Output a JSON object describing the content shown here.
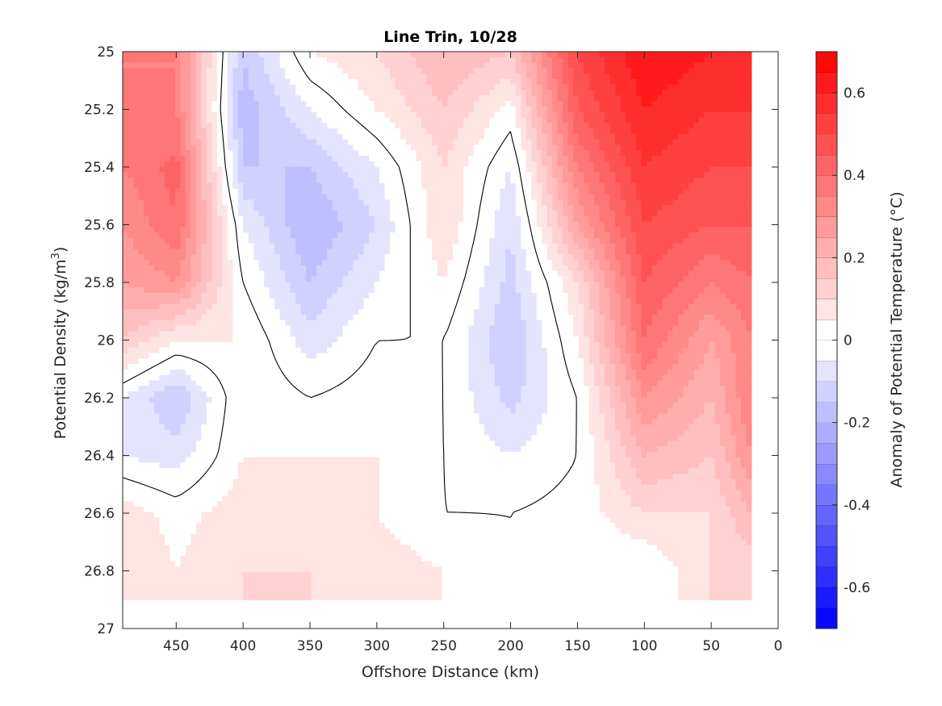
{
  "chart_data": {
    "type": "contourf",
    "title": "Line Trin, 10/28",
    "xlabel": "Offshore Distance (km)",
    "ylabel": "Potential Density (kg/m3)",
    "ylabel_parts": {
      "main": "Potential Density (kg/m",
      "sup": "3",
      "tail": ")"
    },
    "xlim": [
      490,
      0
    ],
    "x_reversed": true,
    "ylim": [
      25,
      27
    ],
    "y_reversed": true,
    "x_ticks": [
      450,
      400,
      350,
      300,
      250,
      200,
      150,
      100,
      50,
      0
    ],
    "x_tick_labels": [
      "450",
      "400",
      "350",
      "300",
      "250",
      "200",
      "150",
      "100",
      "50",
      "0"
    ],
    "y_ticks": [
      25,
      25.2,
      25.4,
      25.6,
      25.8,
      26,
      26.2,
      26.4,
      26.6,
      26.8,
      27
    ],
    "y_tick_labels": [
      "25",
      "25.2",
      "25.4",
      "25.6",
      "25.8",
      "26",
      "26.2",
      "26.4",
      "26.6",
      "26.8",
      "27"
    ],
    "x_coords": [
      490,
      450,
      400,
      350,
      300,
      250,
      200,
      150,
      100,
      50,
      20
    ],
    "y_coords": [
      25.0,
      25.2,
      25.4,
      25.6,
      25.8,
      26.0,
      26.2,
      26.4,
      26.6,
      26.8,
      26.9
    ],
    "values": [
      [
        0.35,
        0.35,
        -0.15,
        0.05,
        0.1,
        0.2,
        0.15,
        0.5,
        0.65,
        0.6,
        0.6
      ],
      [
        0.35,
        0.35,
        -0.18,
        -0.05,
        0.05,
        0.15,
        0.03,
        0.45,
        0.6,
        0.55,
        0.55
      ],
      [
        0.35,
        0.42,
        -0.15,
        -0.15,
        -0.05,
        0.1,
        -0.05,
        0.35,
        0.55,
        0.5,
        0.5
      ],
      [
        0.3,
        0.4,
        -0.05,
        -0.2,
        -0.1,
        0.1,
        -0.1,
        0.25,
        0.5,
        0.45,
        0.45
      ],
      [
        0.25,
        0.3,
        0.0,
        -0.15,
        -0.05,
        0.05,
        -0.12,
        0.1,
        0.45,
        0.35,
        0.4
      ],
      [
        0.15,
        0.05,
        0.05,
        -0.08,
        0.0,
        0.0,
        -0.15,
        0.05,
        0.4,
        0.25,
        0.35
      ],
      [
        -0.05,
        -0.15,
        0.05,
        0.0,
        0.03,
        0.0,
        -0.12,
        0.0,
        0.3,
        0.2,
        0.35
      ],
      [
        -0.05,
        -0.08,
        0.05,
        0.05,
        0.05,
        0.0,
        -0.05,
        0.0,
        0.2,
        0.15,
        0.3
      ],
      [
        0.08,
        0.03,
        0.08,
        0.08,
        0.05,
        0.0,
        0.0,
        0.02,
        0.1,
        0.1,
        0.2
      ],
      [
        0.1,
        0.05,
        0.1,
        0.1,
        0.08,
        0.05,
        0.0,
        0.0,
        0.0,
        0.1,
        0.12
      ],
      [
        0.1,
        0.05,
        0.1,
        0.1,
        0.08,
        0.05,
        0.0,
        0.0,
        0.0,
        0.1,
        0.1
      ]
    ],
    "contour_levels": [
      -0.7,
      -0.65,
      -0.6,
      -0.55,
      -0.5,
      -0.45,
      -0.4,
      -0.35,
      -0.3,
      -0.25,
      -0.2,
      -0.15,
      -0.1,
      -0.05,
      0,
      0.05,
      0.1,
      0.15,
      0.2,
      0.25,
      0.3,
      0.35,
      0.4,
      0.45,
      0.5,
      0.55,
      0.6,
      0.65,
      0.7
    ],
    "contour_line_level": 0,
    "colorbar": {
      "label": "Anomaly of Potential Temperature (°C)",
      "range": [
        -0.7,
        0.7
      ],
      "ticks": [
        0.6,
        0.4,
        0.2,
        0,
        -0.2,
        -0.4,
        -0.6
      ],
      "tick_labels": [
        "0.6",
        "0.4",
        "0.2",
        "0",
        "-0.2",
        "-0.4",
        "-0.6"
      ],
      "neg_color": "#0000ff",
      "zero_color": "#ffffff",
      "pos_color": "#ff0000"
    },
    "grid": false
  },
  "colors": {
    "axis": "#262626",
    "background": "#ffffff",
    "contour_line": "#000000"
  }
}
